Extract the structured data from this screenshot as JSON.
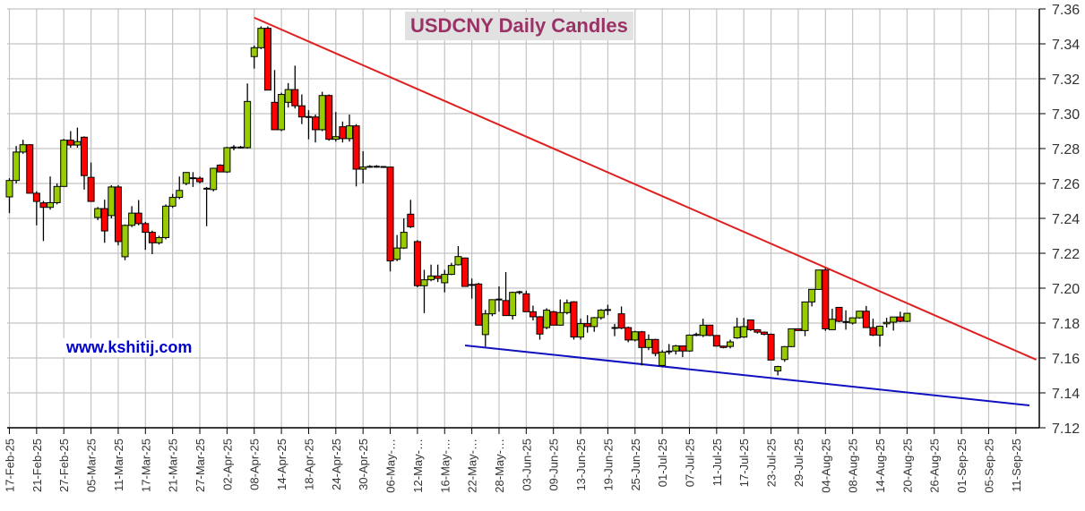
{
  "chart_data": {
    "type": "candlestick",
    "title": "USDCNY Daily Candles",
    "watermark": "www.kshitij.com",
    "ylim": [
      7.12,
      7.36
    ],
    "y_ticks": [
      "7.12",
      "7.14",
      "7.16",
      "7.18",
      "7.20",
      "7.22",
      "7.24",
      "7.26",
      "7.28",
      "7.30",
      "7.32",
      "7.34",
      "7.36"
    ],
    "y_axis_side": "right",
    "grid": true,
    "x_ticks_every_candles": 4,
    "x_tick_labels": [
      "17-Feb-25",
      "21-Feb-25",
      "27-Feb-25",
      "05-Mar-25",
      "11-Mar-25",
      "17-Mar-25",
      "21-Mar-25",
      "27-Mar-25",
      "02-Apr-25",
      "08-Apr-25",
      "14-Apr-25",
      "18-Apr-25",
      "24-Apr-25",
      "30-Apr-25",
      "06-May-…",
      "12-May-…",
      "16-May-…",
      "22-May-…",
      "28-May-…",
      "03-Jun-25",
      "09-Jun-25",
      "13-Jun-25",
      "19-Jun-25",
      "25-Jun-25",
      "01-Jul-25",
      "07-Jul-25",
      "11-Jul-25",
      "17-Jul-25",
      "23-Jul-25",
      "29-Jul-25",
      "04-Aug-25",
      "08-Aug-25",
      "14-Aug-25",
      "20-Aug-25",
      "26-Aug-25",
      "01-Sep-25",
      "05-Sep-25",
      "11-Sep-25"
    ],
    "colors": {
      "up": "#99cc00",
      "down": "#ff0000",
      "resistance": "#e02020",
      "support": "#1010c0",
      "title": "#993366",
      "watermark": "#0000cc"
    },
    "ohlc_fields": [
      "open",
      "high",
      "low",
      "close"
    ],
    "candles": [
      [
        7.2523,
        7.263,
        7.243,
        7.2617
      ],
      [
        7.2617,
        7.2815,
        7.26,
        7.278
      ],
      [
        7.278,
        7.285,
        7.277,
        7.2822
      ],
      [
        7.2822,
        7.2825,
        7.2544,
        7.2544
      ],
      [
        7.2544,
        7.2555,
        7.236,
        7.2497
      ],
      [
        7.2489,
        7.25,
        7.227,
        7.2463
      ],
      [
        7.2463,
        7.264,
        7.245,
        7.249
      ],
      [
        7.249,
        7.26,
        7.248,
        7.2583
      ],
      [
        7.2583,
        7.2855,
        7.258,
        7.2848
      ],
      [
        7.2848,
        7.29,
        7.2805,
        7.282
      ],
      [
        7.282,
        7.292,
        7.2805,
        7.284
      ],
      [
        7.2865,
        7.287,
        7.2565,
        7.2645
      ],
      [
        7.2635,
        7.272,
        7.2497,
        7.2497
      ],
      [
        7.2405,
        7.2465,
        7.239,
        7.2456
      ],
      [
        7.2456,
        7.2507,
        7.226,
        7.2328
      ],
      [
        7.2416,
        7.259,
        7.24,
        7.258
      ],
      [
        7.258,
        7.259,
        7.2245,
        7.2267
      ],
      [
        7.218,
        7.2365,
        7.216,
        7.236
      ],
      [
        7.236,
        7.247,
        7.235,
        7.243
      ],
      [
        7.243,
        7.2505,
        7.236,
        7.237
      ],
      [
        7.237,
        7.238,
        7.222,
        7.232
      ],
      [
        7.232,
        7.233,
        7.2195,
        7.226
      ],
      [
        7.226,
        7.23,
        7.225,
        7.229
      ],
      [
        7.229,
        7.248,
        7.228,
        7.247
      ],
      [
        7.247,
        7.254,
        7.246,
        7.252
      ],
      [
        7.252,
        7.264,
        7.251,
        7.256
      ],
      [
        7.26,
        7.2665,
        7.259,
        7.2663
      ],
      [
        7.263,
        7.2665,
        7.258,
        7.263
      ],
      [
        7.263,
        7.264,
        7.26,
        7.261
      ],
      [
        7.257,
        7.258,
        7.2355,
        7.257
      ],
      [
        7.2565,
        7.269,
        7.2555,
        7.2687
      ],
      [
        7.2705,
        7.271,
        7.2665,
        7.2666
      ],
      [
        7.2666,
        7.281,
        7.266,
        7.2805
      ],
      [
        7.2805,
        7.282,
        7.279,
        7.2807
      ],
      [
        7.2807,
        7.2815,
        7.28,
        7.2805
      ],
      [
        7.2805,
        7.3173,
        7.28,
        7.307
      ],
      [
        7.3327,
        7.339,
        7.3258,
        7.3378
      ],
      [
        7.3378,
        7.35,
        7.337,
        7.3489
      ],
      [
        7.3489,
        7.35,
        7.3135,
        7.3135
      ],
      [
        7.3065,
        7.325,
        7.2908,
        7.2908
      ],
      [
        7.2908,
        7.312,
        7.29,
        7.311
      ],
      [
        7.3065,
        7.3175,
        7.3035,
        7.3138
      ],
      [
        7.3138,
        7.3275,
        7.303,
        7.3045
      ],
      [
        7.3045,
        7.311,
        7.294,
        7.2981
      ],
      [
        7.298,
        7.302,
        7.2853,
        7.2982
      ],
      [
        7.2981,
        7.2995,
        7.2835,
        7.2908
      ],
      [
        7.2908,
        7.3125,
        7.29,
        7.3104
      ],
      [
        7.3104,
        7.311,
        7.2845,
        7.2853
      ],
      [
        7.2853,
        7.301,
        7.284,
        7.2868
      ],
      [
        7.2925,
        7.2955,
        7.2835,
        7.2857
      ],
      [
        7.2857,
        7.2995,
        7.284,
        7.293
      ],
      [
        7.293,
        7.294,
        7.2583,
        7.2682
      ],
      [
        7.2682,
        7.2785,
        7.26,
        7.2694
      ],
      [
        7.2694,
        7.2705,
        7.269,
        7.2697
      ],
      [
        7.2697,
        7.2705,
        7.269,
        7.2695
      ],
      [
        7.2695,
        7.27,
        7.269,
        7.2694
      ],
      [
        7.2694,
        7.2696,
        7.2096,
        7.2156
      ],
      [
        7.2165,
        7.2305,
        7.2155,
        7.223
      ],
      [
        7.223,
        7.24,
        7.2225,
        7.232
      ],
      [
        7.2424,
        7.2506,
        7.2345,
        7.2352
      ],
      [
        7.2267,
        7.2275,
        7.2005,
        7.2014
      ],
      [
        7.2014,
        7.2105,
        7.1857,
        7.2048
      ],
      [
        7.2048,
        7.2135,
        7.204,
        7.207
      ],
      [
        7.207,
        7.2135,
        7.2035,
        7.2056
      ],
      [
        7.2031,
        7.2105,
        7.1976,
        7.2079
      ],
      [
        7.2079,
        7.2145,
        7.2075,
        7.213
      ],
      [
        7.2134,
        7.2241,
        7.213,
        7.2181
      ],
      [
        7.2173,
        7.2175,
        7.201,
        7.201
      ],
      [
        7.2015,
        7.2055,
        7.194,
        7.2022
      ],
      [
        7.2024,
        7.203,
        7.1788,
        7.1788
      ],
      [
        7.1734,
        7.1875,
        7.1665,
        7.1853
      ],
      [
        7.1853,
        7.1935,
        7.184,
        7.1934
      ],
      [
        7.1934,
        7.201,
        7.1865,
        7.1936
      ],
      [
        7.1929,
        7.2092,
        7.1843,
        7.1843
      ],
      [
        7.1843,
        7.198,
        7.182,
        7.1976
      ],
      [
        7.1976,
        7.1985,
        7.1965,
        7.1978
      ],
      [
        7.1968,
        7.1985,
        7.1865,
        7.1865
      ],
      [
        7.1865,
        7.19,
        7.1815,
        7.1836
      ],
      [
        7.1836,
        7.184,
        7.1705,
        7.1737
      ],
      [
        7.1774,
        7.1885,
        7.1765,
        7.1874
      ],
      [
        7.1865,
        7.187,
        7.1788,
        7.1788
      ],
      [
        7.1788,
        7.1935,
        7.1785,
        7.186
      ],
      [
        7.186,
        7.1935,
        7.185,
        7.1916
      ],
      [
        7.1922,
        7.1925,
        7.1705,
        7.172
      ],
      [
        7.172,
        7.1825,
        7.1705,
        7.1797
      ],
      [
        7.1797,
        7.1845,
        7.1745,
        7.178
      ],
      [
        7.178,
        7.1835,
        7.175,
        7.1831
      ],
      [
        7.1831,
        7.188,
        7.182,
        7.1874
      ],
      [
        7.1874,
        7.1905,
        7.1845,
        7.1876
      ],
      [
        7.1771,
        7.1795,
        7.1725,
        7.1773
      ],
      [
        7.1853,
        7.1895,
        7.1765,
        7.1771
      ],
      [
        7.1774,
        7.178,
        7.169,
        7.1703
      ],
      [
        7.1703,
        7.1755,
        7.1695,
        7.175
      ],
      [
        7.175,
        7.1755,
        7.1557,
        7.166
      ],
      [
        7.166,
        7.1735,
        7.1645,
        7.1706
      ],
      [
        7.1706,
        7.171,
        7.161,
        7.1626
      ],
      [
        7.1557,
        7.1645,
        7.155,
        7.1634
      ],
      [
        7.1634,
        7.168,
        7.162,
        7.164
      ],
      [
        7.164,
        7.1675,
        7.162,
        7.1669
      ],
      [
        7.1669,
        7.167,
        7.1605,
        7.164
      ],
      [
        7.164,
        7.1735,
        7.1635,
        7.1731
      ],
      [
        7.1731,
        7.1745,
        7.1725,
        7.1733
      ],
      [
        7.1729,
        7.1825,
        7.172,
        7.1788
      ],
      [
        7.1788,
        7.179,
        7.1725,
        7.1729
      ],
      [
        7.1729,
        7.173,
        7.1665,
        7.1668
      ],
      [
        7.1668,
        7.167,
        7.1655,
        7.166
      ],
      [
        7.1666,
        7.1705,
        7.1655,
        7.1692
      ],
      [
        7.1715,
        7.183,
        7.171,
        7.1778
      ],
      [
        7.172,
        7.183,
        7.1715,
        7.178
      ],
      [
        7.1818,
        7.182,
        7.1755,
        7.1762
      ],
      [
        7.1762,
        7.1765,
        7.174,
        7.1748
      ],
      [
        7.1748,
        7.1752,
        7.173,
        7.1736
      ],
      [
        7.1736,
        7.174,
        7.1588,
        7.1588
      ],
      [
        7.1526,
        7.1555,
        7.15,
        7.1551
      ],
      [
        7.1591,
        7.1668,
        7.1578,
        7.1665
      ],
      [
        7.1665,
        7.1768,
        7.1662,
        7.1767
      ],
      [
        7.1767,
        7.177,
        7.1755,
        7.1757
      ],
      [
        7.1757,
        7.1921,
        7.1725,
        7.1921
      ],
      [
        7.1921,
        7.1993,
        7.1895,
        7.1993
      ],
      [
        7.1993,
        7.2105,
        7.199,
        7.2104
      ],
      [
        7.2104,
        7.2116,
        7.1755,
        7.1767
      ],
      [
        7.1762,
        7.1882,
        7.176,
        7.1822
      ],
      [
        7.189,
        7.1892,
        7.1805,
        7.181
      ],
      [
        7.1805,
        7.1873,
        7.1762,
        7.1807
      ],
      [
        7.18,
        7.1832,
        7.1792,
        7.183
      ],
      [
        7.183,
        7.187,
        7.1825,
        7.1868
      ],
      [
        7.1868,
        7.1898,
        7.1774,
        7.1774
      ],
      [
        7.1774,
        7.1825,
        7.1725,
        7.1731
      ],
      [
        7.1731,
        7.1785,
        7.1665,
        7.1782
      ],
      [
        7.1796,
        7.183,
        7.1775,
        7.1804
      ],
      [
        7.1805,
        7.1835,
        7.1757,
        7.1835
      ],
      [
        7.1835,
        7.1865,
        7.1805,
        7.181
      ],
      [
        7.181,
        7.1858,
        7.1805,
        7.1856
      ]
    ],
    "trendlines": [
      {
        "type": "resistance",
        "start": {
          "date": "08-Apr-25",
          "price": 7.355
        },
        "end": {
          "date": "16-Sep-25",
          "price": 7.159
        }
      },
      {
        "type": "support",
        "start": {
          "date": "21-May-25",
          "price": 7.1672
        },
        "end": {
          "date": "15-Sep-25",
          "price": 7.1328
        }
      }
    ]
  }
}
